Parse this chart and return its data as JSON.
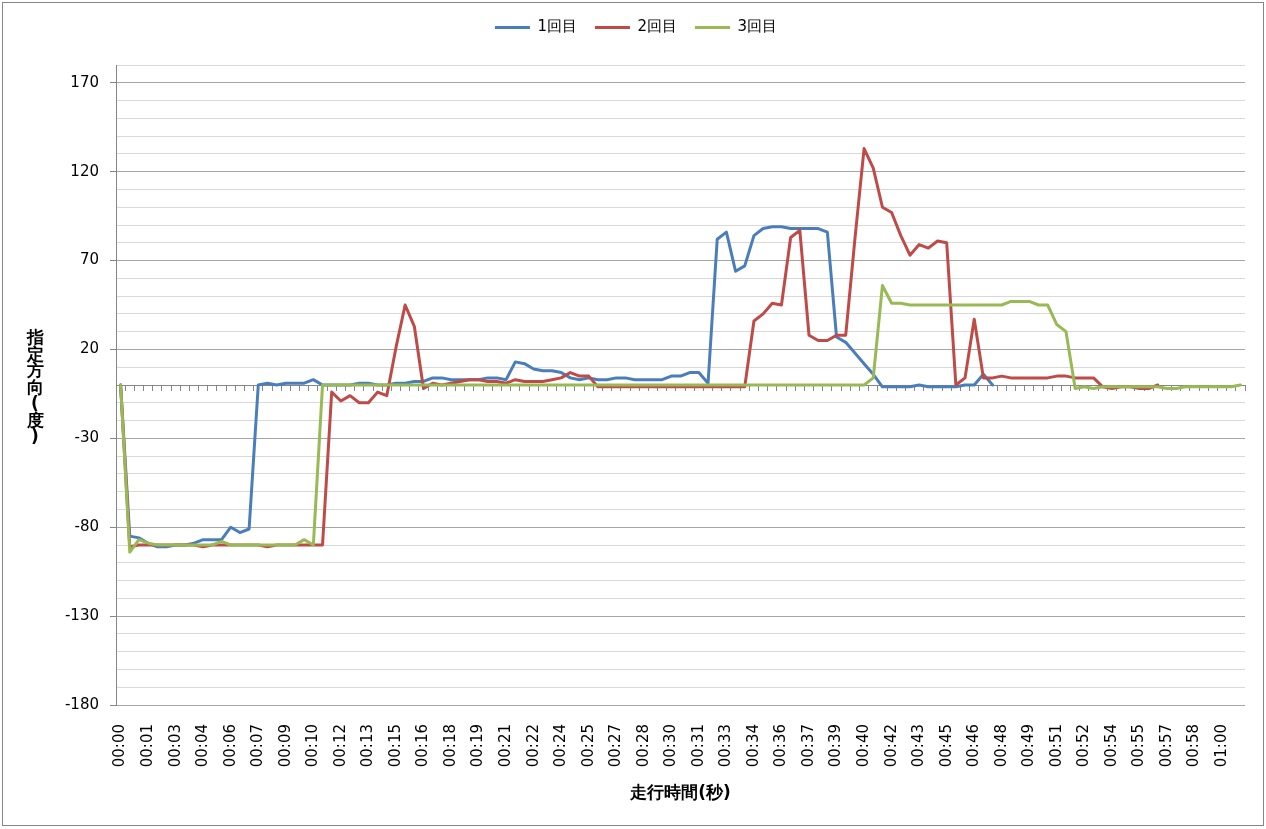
{
  "chart_data": {
    "type": "line",
    "xlabel": "走行時間(秒)",
    "ylabel": "指定方向(度)",
    "categories": [
      "00:00",
      null,
      null,
      "00:01",
      null,
      null,
      "00:03",
      null,
      null,
      "00:04",
      null,
      null,
      "00:06",
      null,
      null,
      "00:07",
      null,
      null,
      "00:09",
      null,
      null,
      "00:10",
      null,
      null,
      "00:12",
      null,
      null,
      "00:13",
      null,
      null,
      "00:15",
      null,
      null,
      "00:16",
      null,
      null,
      "00:18",
      null,
      null,
      "00:19",
      null,
      null,
      "00:21",
      null,
      null,
      "00:22",
      null,
      null,
      "00:24",
      null,
      null,
      "00:25",
      null,
      null,
      "00:27",
      null,
      null,
      "00:28",
      null,
      null,
      "00:30",
      null,
      null,
      "00:31",
      null,
      null,
      "00:33",
      null,
      null,
      "00:34",
      null,
      null,
      "00:36",
      null,
      null,
      "00:37",
      null,
      null,
      "00:39",
      null,
      null,
      "00:40",
      null,
      null,
      "00:42",
      null,
      null,
      "00:43",
      null,
      null,
      "00:45",
      null,
      null,
      "00:46",
      null,
      null,
      "00:48",
      null,
      null,
      "00:49",
      null,
      null,
      "00:51",
      null,
      null,
      "00:52",
      null,
      null,
      "00:54",
      null,
      null,
      "00:55",
      null,
      null,
      "00:57",
      null,
      null,
      "00:58",
      null,
      null,
      "01:00",
      null,
      null
    ],
    "series": [
      {
        "name": "1回目",
        "color": "#4a7ebb",
        "values": [
          0,
          -85,
          -86,
          -89,
          -91,
          -91,
          -90,
          -90,
          -89,
          -87,
          -87,
          -87,
          -80,
          -83,
          -81,
          0,
          1,
          0,
          1,
          1,
          1,
          3,
          0,
          0,
          0,
          0,
          1,
          1,
          0,
          0,
          1,
          1,
          2,
          2,
          4,
          4,
          3,
          3,
          3,
          3,
          4,
          4,
          3,
          13,
          12,
          9,
          8,
          8,
          7,
          4,
          3,
          4,
          3,
          3,
          4,
          4,
          3,
          3,
          3,
          3,
          5,
          5,
          7,
          7,
          1,
          82,
          86,
          64,
          67,
          84,
          88,
          89,
          89,
          88,
          88,
          88,
          88,
          86,
          27,
          24,
          18,
          12,
          6,
          -1,
          -1,
          -1,
          -1,
          0,
          -1,
          -1,
          -1,
          -1,
          0,
          0,
          6,
          0,
          null,
          null,
          null,
          null,
          null,
          null,
          null,
          null,
          null,
          null,
          null,
          null,
          null,
          null,
          null,
          null,
          null,
          null,
          null,
          null,
          null,
          null,
          null,
          null,
          null,
          null,
          null
        ]
      },
      {
        "name": "2回目",
        "color": "#be4b48",
        "values": [
          0,
          -91,
          -90,
          -90,
          -90,
          -90,
          -90,
          -90,
          -90,
          -91,
          -90,
          -90,
          -90,
          -90,
          -90,
          -90,
          -91,
          -90,
          -90,
          -90,
          -90,
          -90,
          -90,
          -4,
          -9,
          -6,
          -10,
          -10,
          -4,
          -6,
          21,
          45,
          33,
          -2,
          1,
          0,
          1,
          2,
          3,
          3,
          2,
          2,
          1,
          3,
          2,
          2,
          2,
          3,
          4,
          7,
          5,
          5,
          -1,
          -1,
          -1,
          -1,
          -1,
          -1,
          -1,
          -1,
          -1,
          -1,
          -1,
          -1,
          -1,
          -1,
          -1,
          -1,
          -1,
          36,
          40,
          46,
          45,
          83,
          87,
          28,
          25,
          25,
          28,
          28,
          82,
          133,
          122,
          100,
          97,
          84,
          73,
          79,
          77,
          81,
          80,
          0,
          4,
          37,
          4,
          4,
          5,
          4,
          4,
          4,
          4,
          4,
          5,
          5,
          4,
          4,
          4,
          -1,
          -2,
          -1,
          -1,
          -2,
          -2,
          0,
          null,
          null,
          null,
          null,
          null,
          null,
          null,
          null,
          null
        ]
      },
      {
        "name": "3回目",
        "color": "#98b954",
        "values": [
          0,
          -94,
          -87,
          -89,
          -90,
          -90,
          -90,
          -90,
          -90,
          -90,
          -90,
          -88,
          -90,
          -90,
          -90,
          -90,
          -90,
          -90,
          -90,
          -90,
          -87,
          -90,
          0,
          0,
          0,
          0,
          0,
          0,
          0,
          0,
          0,
          0,
          0,
          0,
          0,
          0,
          0,
          0,
          0,
          0,
          0,
          0,
          0,
          0,
          0,
          0,
          0,
          0,
          0,
          0,
          0,
          0,
          0,
          0,
          0,
          0,
          0,
          0,
          0,
          0,
          0,
          0,
          0,
          0,
          0,
          0,
          0,
          0,
          0,
          0,
          0,
          0,
          0,
          0,
          0,
          0,
          0,
          0,
          0,
          0,
          0,
          0,
          4,
          56,
          46,
          46,
          45,
          45,
          45,
          45,
          45,
          45,
          45,
          45,
          45,
          45,
          45,
          47,
          47,
          47,
          45,
          45,
          34,
          30,
          -2,
          -1,
          -2,
          -1,
          -1,
          -1,
          -1,
          -1,
          -1,
          -1,
          -2,
          -2,
          -1,
          -1,
          -1,
          -1,
          -1,
          -1,
          0
        ]
      }
    ],
    "ylim": [
      -180,
      180
    ],
    "yticks": [
      -180,
      {
        "value": -170,
        "label": null
      },
      {
        "value": -160,
        "label": null
      },
      {
        "value": -150,
        "label": null
      },
      {
        "value": -140,
        "label": null
      },
      -130,
      {
        "value": -120,
        "label": null
      },
      {
        "value": -110,
        "label": null
      },
      {
        "value": -100,
        "label": null
      },
      {
        "value": -90,
        "label": null
      },
      -80,
      {
        "value": -70,
        "label": null
      },
      {
        "value": -60,
        "label": null
      },
      {
        "value": -50,
        "label": null
      },
      {
        "value": -40,
        "label": null
      },
      -30,
      {
        "value": -20,
        "label": null
      },
      {
        "value": -10,
        "label": null
      },
      {
        "value": 0,
        "label": null
      },
      {
        "value": 10,
        "label": null
      },
      20,
      {
        "value": 30,
        "label": null
      },
      {
        "value": 40,
        "label": null
      },
      {
        "value": 50,
        "label": null
      },
      {
        "value": 60,
        "label": null
      },
      70,
      {
        "value": 80,
        "label": null
      },
      {
        "value": 90,
        "label": null
      },
      {
        "value": 100,
        "label": null
      },
      {
        "value": 110,
        "label": null
      },
      120,
      {
        "value": 130,
        "label": null
      },
      {
        "value": 140,
        "label": null
      },
      {
        "value": 150,
        "label": null
      },
      {
        "value": 160,
        "label": null
      },
      170,
      {
        "value": 180,
        "label": null
      }
    ],
    "grid": "y",
    "legend": "top"
  }
}
